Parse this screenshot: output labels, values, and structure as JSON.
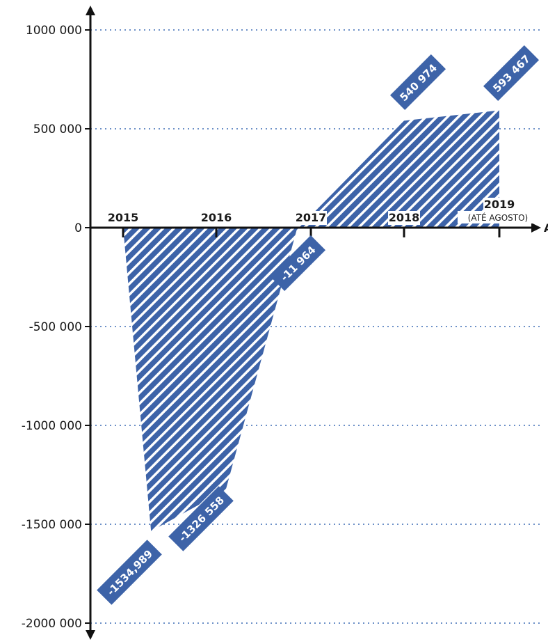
{
  "chart_data": {
    "type": "area",
    "categories": [
      "2015",
      "2016",
      "2017",
      "2018",
      "2019"
    ],
    "category_notes": {
      "2019": "(ATÉ AGOSTO)"
    },
    "x_axis_end_label": "A",
    "points": [
      {
        "x": 2015.3,
        "y": -1534989,
        "label": "-1534,989"
      },
      {
        "x": 2016.1,
        "y": -1326558,
        "label": "-1326 558"
      },
      {
        "x": 2016.85,
        "y": -11964,
        "label": "-11 964"
      },
      {
        "x": 2018.0,
        "y": 540974,
        "label": "540 974"
      },
      {
        "x": 2019.0,
        "y": 593467,
        "label": "593 467"
      }
    ],
    "y_ticks": [
      1000000,
      500000,
      0,
      -500000,
      -1000000,
      -1500000,
      -2000000
    ],
    "y_tick_labels": [
      "1000 000",
      "500 000",
      "0",
      "-500 000",
      "-1000 000",
      "-1500 000",
      "-2000 000"
    ],
    "ylim": [
      -2000000,
      1000000
    ],
    "grid": "horizontal dotted",
    "colors": {
      "fill": "#3d63a8",
      "stripe": "#ffffff",
      "grid": "#6b8fc7",
      "axis": "#111111",
      "label_box": "#3d63a8"
    }
  }
}
